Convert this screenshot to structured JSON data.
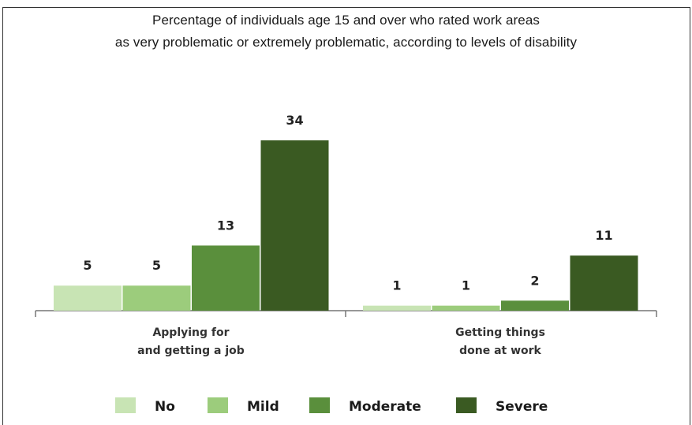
{
  "chart_data": {
    "type": "bar",
    "title_lines": [
      "Percentage of individuals age 15 and over who rated work areas",
      "as very problematic or extremely problematic, according to levels of disability"
    ],
    "categories": [
      [
        "Applying for",
        "and getting a job"
      ],
      [
        "Getting things",
        "done at work"
      ]
    ],
    "series": [
      {
        "name": "No",
        "values": [
          5,
          1
        ],
        "color": "#c8e4b4"
      },
      {
        "name": "Mild",
        "values": [
          5,
          1
        ],
        "color": "#9ccc7c"
      },
      {
        "name": "Moderate",
        "values": [
          13,
          2
        ],
        "color": "#5a8f3c"
      },
      {
        "name": "Severe",
        "values": [
          34,
          11
        ],
        "color": "#3a5a22"
      }
    ],
    "ylim": [
      0,
      34
    ],
    "grid": false,
    "legend_position": "bottom"
  }
}
